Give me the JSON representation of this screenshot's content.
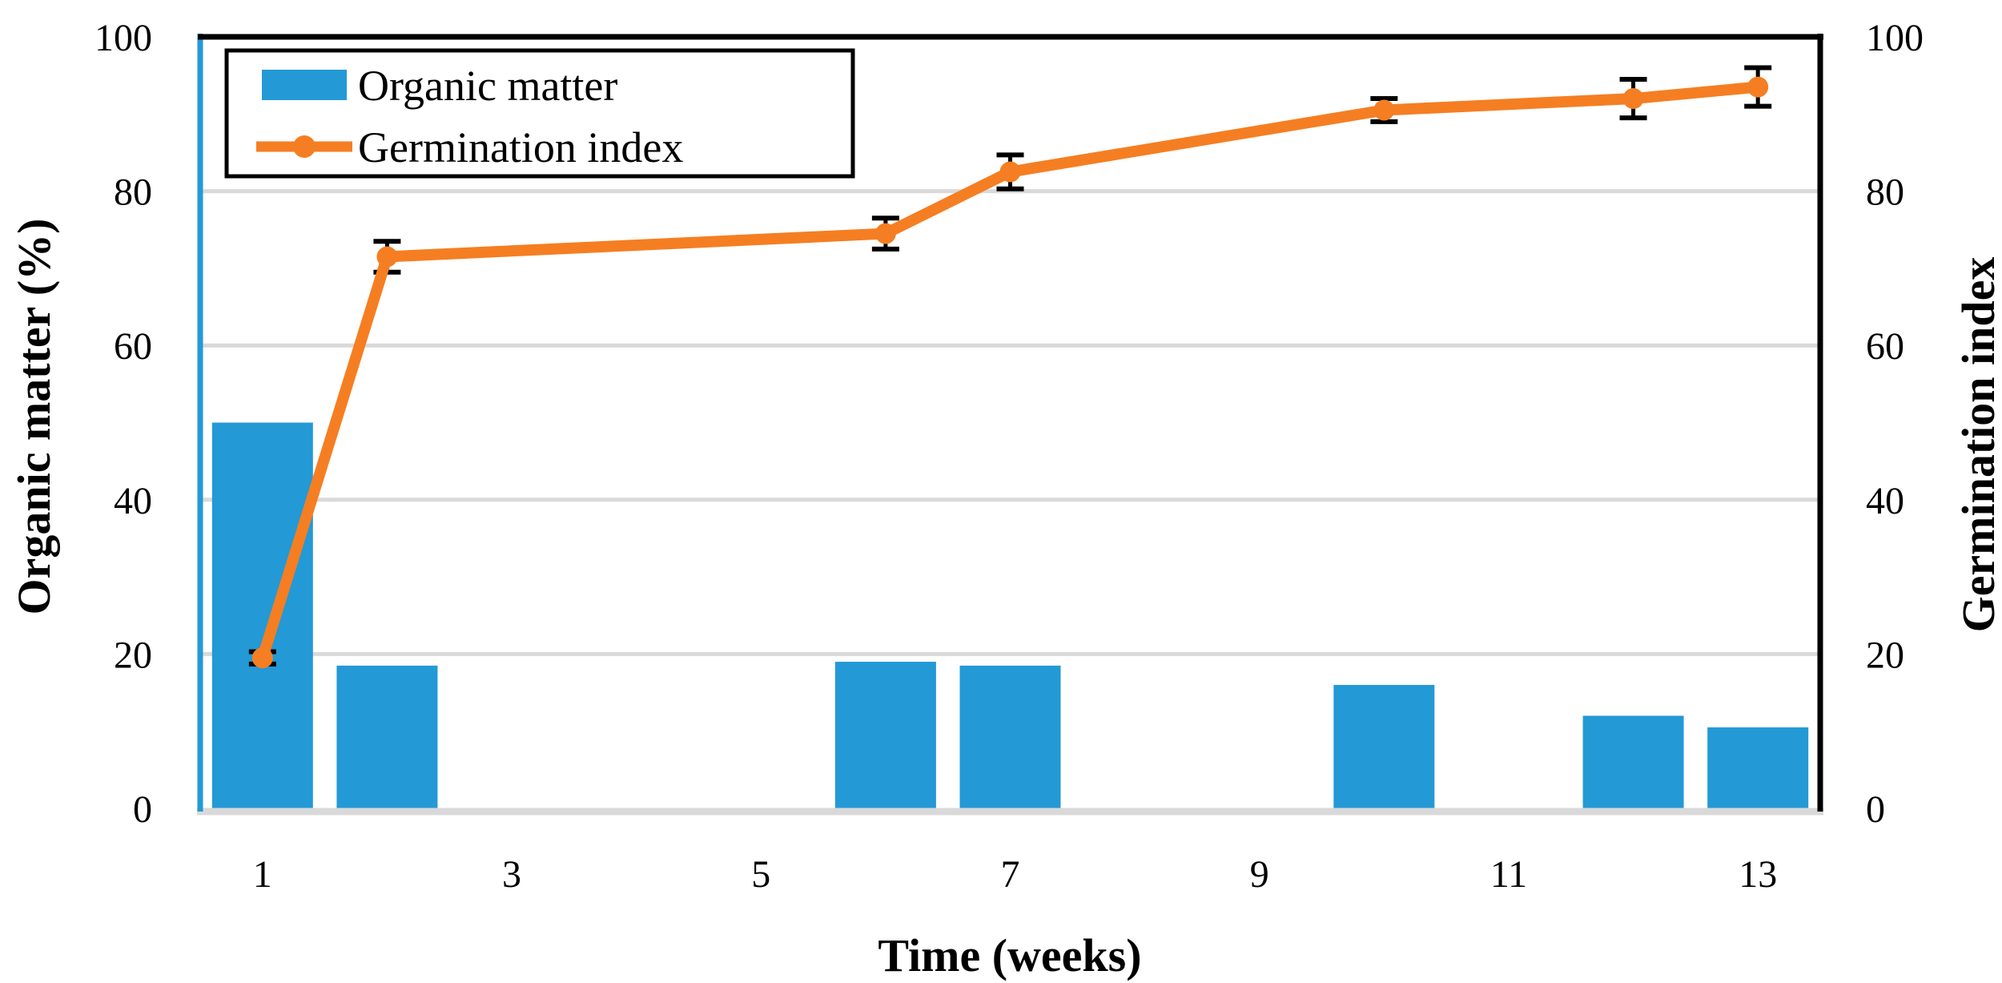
{
  "figure": {
    "background": "#FFFFFF",
    "border_color": "#000000"
  },
  "legend": {
    "entries": [
      {
        "label": "Organic matter",
        "swatch": "bar-swatch"
      },
      {
        "label": "Germination index",
        "swatch": "line-marker-swatch"
      }
    ]
  },
  "chart_data": {
    "type": "combo-bar-line",
    "x": [
      1,
      2,
      6,
      7,
      10,
      12,
      13
    ],
    "series": [
      {
        "name": "Organic matter",
        "type": "bar",
        "axis": "left",
        "color": "#2399D6",
        "values": [
          50,
          18.5,
          19,
          18.5,
          16,
          12,
          10.5
        ]
      },
      {
        "name": "Germination index",
        "type": "line",
        "axis": "right",
        "color": "#F57E22",
        "marker": "circle",
        "values": [
          19.5,
          71.5,
          74.5,
          82.5,
          90.5,
          92,
          93.5
        ],
        "error_bars": [
          0.8,
          2,
          2,
          2.2,
          1.5,
          2.5,
          2.5
        ],
        "error_bar_color": "#000000"
      }
    ],
    "x_axis": {
      "title": "Time (weeks)",
      "tick_labels": [
        "1",
        "3",
        "5",
        "7",
        "9",
        "11",
        "13"
      ],
      "tick_positions": [
        1,
        3,
        5,
        7,
        9,
        11,
        13
      ],
      "slots": 13
    },
    "left_axis": {
      "title": "Organic matter (%)",
      "tick_labels": [
        "0",
        "20",
        "40",
        "60",
        "80",
        "100"
      ],
      "tick_values": [
        0,
        20,
        40,
        60,
        80,
        100
      ],
      "range": [
        0,
        100
      ],
      "axis_line_color": "#2399D6"
    },
    "right_axis": {
      "title": "Germination index",
      "tick_labels": [
        "0",
        "20",
        "40",
        "60",
        "80",
        "100"
      ],
      "tick_values": [
        0,
        20,
        40,
        60,
        80,
        100
      ],
      "range": [
        0,
        100
      ],
      "axis_line_color": "#000000"
    },
    "grid": {
      "show": true,
      "color": "#D9D9D9",
      "values": [
        20,
        40,
        60,
        80
      ],
      "baseline_color": "#D9D9D9"
    }
  }
}
